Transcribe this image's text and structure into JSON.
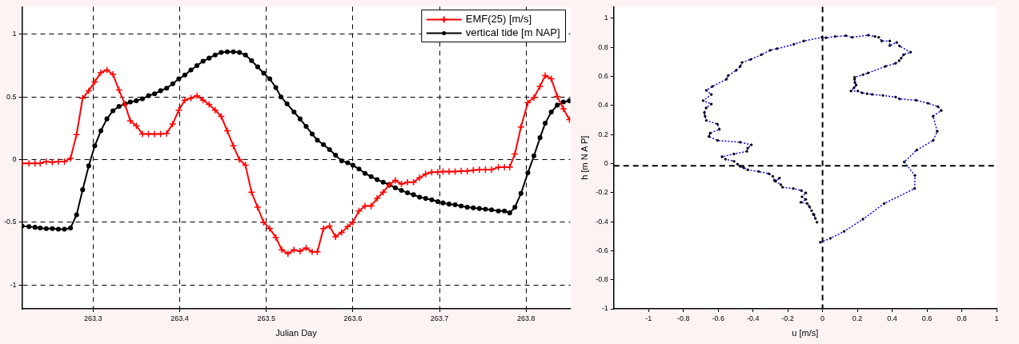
{
  "chart_data": [
    {
      "type": "line",
      "xlabel": "Julian Day",
      "xlim": [
        263.218,
        263.851
      ],
      "ylim": [
        -1.19,
        1.22
      ],
      "xticks": [
        263.3,
        263.4,
        263.5,
        263.6,
        263.7,
        263.8
      ],
      "yticks": [
        -1,
        -0.5,
        0,
        0.5,
        1
      ],
      "grid": true,
      "legend": "top right",
      "series": [
        {
          "name": "EMF(25) [m/s]",
          "color": "#ff0000",
          "marker": "cross",
          "x": [
            263.218,
            263.226,
            263.233,
            263.239,
            263.246,
            263.253,
            263.26,
            263.267,
            263.274,
            263.281,
            263.288,
            263.295,
            263.302,
            263.309,
            263.316,
            263.323,
            263.33,
            263.337,
            263.343,
            263.35,
            263.357,
            263.364,
            263.371,
            263.378,
            263.385,
            263.392,
            263.399,
            263.406,
            263.413,
            263.42,
            263.427,
            263.434,
            263.441,
            263.448,
            263.455,
            263.462,
            263.469,
            263.476,
            263.483,
            263.49,
            263.497,
            263.504,
            263.511,
            263.518,
            263.525,
            263.532,
            263.539,
            263.546,
            263.553,
            263.559,
            263.566,
            263.573,
            263.58,
            263.587,
            263.594,
            263.6,
            263.607,
            263.614,
            263.621,
            263.628,
            263.635,
            263.642,
            263.649,
            263.656,
            263.663,
            263.67,
            263.677,
            263.684,
            263.691,
            263.698,
            263.704,
            263.711,
            263.718,
            263.725,
            263.732,
            263.739,
            263.746,
            263.753,
            263.76,
            263.768,
            263.775,
            263.781,
            263.787,
            263.794,
            263.802,
            263.809,
            263.816,
            263.822,
            263.829,
            263.836,
            263.843,
            263.85
          ],
          "values": [
            -0.03,
            -0.03,
            -0.03,
            -0.03,
            -0.015,
            -0.02,
            -0.015,
            -0.015,
            0.01,
            0.2,
            0.49,
            0.55,
            0.62,
            0.695,
            0.715,
            0.68,
            0.555,
            0.44,
            0.31,
            0.27,
            0.205,
            0.205,
            0.205,
            0.205,
            0.21,
            0.285,
            0.395,
            0.475,
            0.49,
            0.51,
            0.475,
            0.44,
            0.395,
            0.345,
            0.23,
            0.11,
            0.0,
            -0.045,
            -0.26,
            -0.38,
            -0.5,
            -0.55,
            -0.62,
            -0.72,
            -0.75,
            -0.72,
            -0.73,
            -0.705,
            -0.735,
            -0.735,
            -0.55,
            -0.53,
            -0.615,
            -0.58,
            -0.535,
            -0.5,
            -0.41,
            -0.37,
            -0.37,
            -0.31,
            -0.26,
            -0.2,
            -0.165,
            -0.195,
            -0.18,
            -0.18,
            -0.145,
            -0.115,
            -0.1,
            -0.1,
            -0.095,
            -0.095,
            -0.095,
            -0.09,
            -0.09,
            -0.085,
            -0.08,
            -0.08,
            -0.08,
            -0.06,
            -0.06,
            -0.06,
            0.045,
            0.26,
            0.455,
            0.495,
            0.585,
            0.67,
            0.645,
            0.505,
            0.405,
            0.32
          ]
        },
        {
          "name": "vertical tide [m NAP]",
          "color": "#000000",
          "marker": "circle",
          "x": [
            263.218,
            263.226,
            263.233,
            263.239,
            263.246,
            263.253,
            263.26,
            263.267,
            263.274,
            263.281,
            263.288,
            263.295,
            263.302,
            263.309,
            263.316,
            263.323,
            263.33,
            263.337,
            263.343,
            263.35,
            263.357,
            263.364,
            263.371,
            263.378,
            263.385,
            263.392,
            263.399,
            263.406,
            263.413,
            263.42,
            263.427,
            263.434,
            263.441,
            263.448,
            263.455,
            263.462,
            263.469,
            263.476,
            263.483,
            263.49,
            263.497,
            263.504,
            263.511,
            263.517,
            263.524,
            263.532,
            263.539,
            263.546,
            263.553,
            263.559,
            263.566,
            263.573,
            263.58,
            263.587,
            263.594,
            263.6,
            263.607,
            263.614,
            263.621,
            263.628,
            263.635,
            263.642,
            263.649,
            263.656,
            263.663,
            263.67,
            263.677,
            263.684,
            263.691,
            263.698,
            263.704,
            263.711,
            263.718,
            263.725,
            263.732,
            263.739,
            263.746,
            263.753,
            263.76,
            263.768,
            263.775,
            263.781,
            263.787,
            263.794,
            263.802,
            263.809,
            263.816,
            263.822,
            263.829,
            263.836,
            263.843,
            263.85
          ],
          "values": [
            -0.53,
            -0.535,
            -0.54,
            -0.545,
            -0.55,
            -0.55,
            -0.555,
            -0.555,
            -0.545,
            -0.44,
            -0.24,
            -0.05,
            0.11,
            0.23,
            0.325,
            0.39,
            0.425,
            0.445,
            0.46,
            0.47,
            0.485,
            0.51,
            0.525,
            0.55,
            0.57,
            0.605,
            0.645,
            0.675,
            0.715,
            0.75,
            0.785,
            0.81,
            0.835,
            0.855,
            0.86,
            0.86,
            0.855,
            0.835,
            0.79,
            0.74,
            0.69,
            0.645,
            0.575,
            0.5,
            0.445,
            0.38,
            0.325,
            0.265,
            0.205,
            0.155,
            0.12,
            0.08,
            0.035,
            -0.01,
            -0.025,
            -0.045,
            -0.075,
            -0.11,
            -0.135,
            -0.16,
            -0.18,
            -0.2,
            -0.225,
            -0.245,
            -0.265,
            -0.28,
            -0.3,
            -0.31,
            -0.32,
            -0.335,
            -0.345,
            -0.355,
            -0.36,
            -0.37,
            -0.38,
            -0.385,
            -0.39,
            -0.395,
            -0.4,
            -0.41,
            -0.41,
            -0.425,
            -0.38,
            -0.27,
            -0.105,
            0.03,
            0.175,
            0.29,
            0.38,
            0.435,
            0.46,
            0.47
          ]
        }
      ]
    },
    {
      "type": "line",
      "xlabel": "u [m/s]",
      "ylabel": "h [m N A P]",
      "xlim": [
        -1.2,
        1
      ],
      "ylim": [
        -1,
        1.08
      ],
      "xticks": [
        -1,
        -0.8,
        -0.6,
        -0.4,
        -0.2,
        0,
        0.2,
        0.4,
        0.6,
        0.8,
        1
      ],
      "yticks": [
        -1,
        -0.8,
        -0.6,
        -0.4,
        -0.2,
        0,
        0.2,
        0.4,
        0.6,
        0.8,
        1
      ],
      "grid": false,
      "legend": false,
      "ref_lines": [
        {
          "axis": "x",
          "value": 0,
          "color": "#000000",
          "line_style": "dashed"
        },
        {
          "axis": "y",
          "value": -0.015,
          "color": "#000000",
          "line_style": "dashed"
        }
      ],
      "series": [
        {
          "color": "#0000ff",
          "marker": "circle",
          "line_style": "dotted",
          "x": [
            -0.013,
            0.045,
            0.124,
            0.232,
            0.354,
            0.529,
            0.531,
            0.469,
            0.541,
            0.636,
            0.659,
            0.635,
            0.682,
            0.663,
            0.606,
            0.538,
            0.443,
            0.42,
            0.347,
            0.285,
            0.256,
            0.227,
            0.203,
            0.163,
            0.181,
            0.193,
            0.186,
            0.184,
            0.184,
            0.233,
            0.262,
            0.361,
            0.419,
            0.44,
            0.452,
            0.466,
            0.506,
            0.443,
            0.426,
            0.386,
            0.386,
            0.34,
            0.323,
            0.301,
            0.263,
            0.17,
            0.134,
            0.073,
            0.02,
            -0.003,
            -0.108,
            -0.165,
            -0.262,
            -0.301,
            -0.351,
            -0.413,
            -0.463,
            -0.473,
            -0.496,
            -0.542,
            -0.553,
            -0.633,
            -0.668,
            -0.639,
            -0.686,
            -0.639,
            -0.669,
            -0.679,
            -0.675,
            -0.668,
            -0.604,
            -0.593,
            -0.646,
            -0.653,
            -0.603,
            -0.473,
            -0.409,
            -0.43,
            -0.435,
            -0.509,
            -0.578,
            -0.558,
            -0.509,
            -0.488,
            -0.473,
            -0.453,
            -0.43,
            -0.367,
            -0.308,
            -0.286,
            -0.276,
            -0.247,
            -0.269,
            -0.24,
            -0.23,
            -0.168,
            -0.122,
            -0.096,
            -0.118,
            -0.096,
            -0.125,
            -0.088,
            -0.075,
            -0.063,
            -0.053,
            -0.049,
            -0.042,
            -0.032
          ],
          "values": [
            -0.542,
            -0.515,
            -0.467,
            -0.383,
            -0.275,
            -0.172,
            -0.082,
            0.011,
            0.093,
            0.159,
            0.222,
            0.326,
            0.365,
            0.392,
            0.415,
            0.436,
            0.445,
            0.458,
            0.469,
            0.476,
            0.481,
            0.487,
            0.499,
            0.499,
            0.522,
            0.54,
            0.558,
            0.58,
            0.594,
            0.612,
            0.624,
            0.669,
            0.69,
            0.708,
            0.726,
            0.75,
            0.767,
            0.809,
            0.834,
            0.812,
            0.844,
            0.844,
            0.869,
            0.875,
            0.884,
            0.869,
            0.88,
            0.875,
            0.866,
            0.869,
            0.844,
            0.821,
            0.791,
            0.78,
            0.75,
            0.717,
            0.696,
            0.669,
            0.642,
            0.606,
            0.58,
            0.531,
            0.504,
            0.476,
            0.433,
            0.41,
            0.383,
            0.351,
            0.326,
            0.297,
            0.272,
            0.236,
            0.209,
            0.186,
            0.159,
            0.147,
            0.129,
            0.106,
            0.084,
            0.066,
            0.047,
            0.03,
            0.016,
            -0.005,
            -0.02,
            -0.029,
            -0.043,
            -0.055,
            -0.07,
            -0.088,
            -0.118,
            -0.1,
            -0.122,
            -0.145,
            -0.163,
            -0.172,
            -0.186,
            -0.202,
            -0.229,
            -0.247,
            -0.267,
            -0.275,
            -0.297,
            -0.324,
            -0.351,
            -0.351,
            -0.377,
            -0.404
          ]
        }
      ]
    }
  ]
}
